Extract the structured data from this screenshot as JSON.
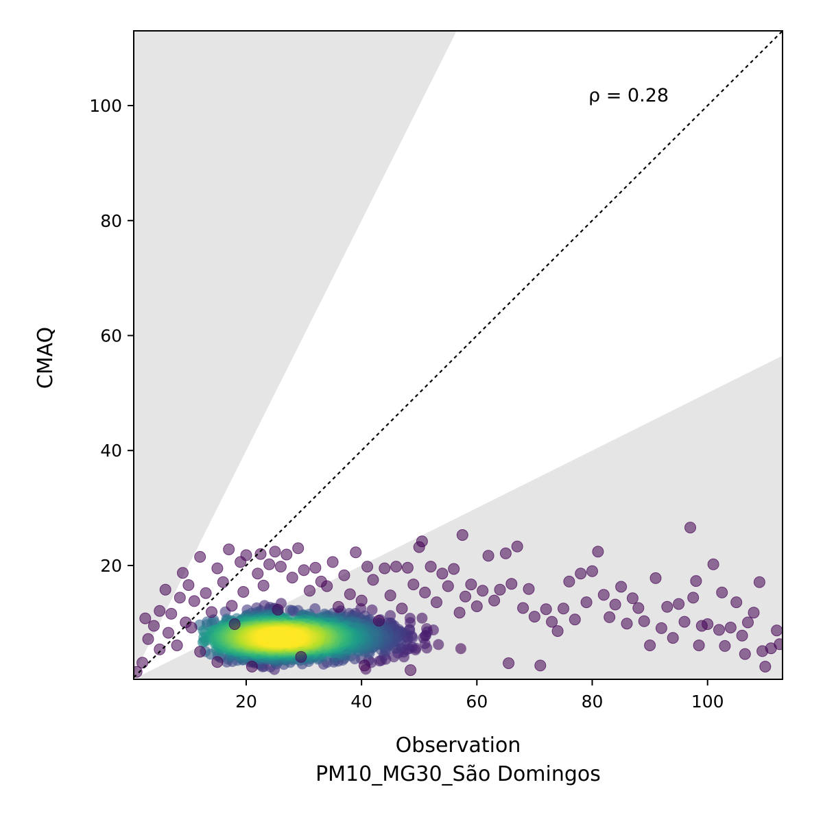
{
  "chart_data": {
    "type": "scatter",
    "title": "",
    "xlabel": "Observation",
    "xlabel2": "PM10_MG30_São Domingos",
    "ylabel": "CMAQ",
    "annotation": "ρ = 0.28",
    "xlim": [
      0.5,
      113
    ],
    "ylim": [
      0.2,
      113
    ],
    "xticks": [
      20,
      40,
      60,
      80,
      100
    ],
    "yticks": [
      20,
      40,
      60,
      80,
      100
    ],
    "reference_line": {
      "type": "identity",
      "style": "dotted",
      "color": "#000000"
    },
    "shaded_region": {
      "description": "outside factor-of-2 band",
      "upper_slope": 2,
      "lower_slope": 0.5,
      "color": "#e5e5e5"
    },
    "colormap": "viridis (point density)",
    "point_color_low": "#440154",
    "point_color_high": "#fde725",
    "points": [
      [
        1,
        1.5
      ],
      [
        2,
        3.1
      ],
      [
        2.5,
        10.8
      ],
      [
        3,
        7.2
      ],
      [
        4,
        9.5
      ],
      [
        5,
        12.1
      ],
      [
        5,
        5.4
      ],
      [
        6,
        15.8
      ],
      [
        6.5,
        8.3
      ],
      [
        7,
        11.6
      ],
      [
        8,
        6.1
      ],
      [
        8.5,
        14.4
      ],
      [
        9,
        18.7
      ],
      [
        9.5,
        10.1
      ],
      [
        10,
        16.6
      ],
      [
        10.5,
        9.2
      ],
      [
        11,
        13.8
      ],
      [
        12,
        21.5
      ],
      [
        12,
        5.0
      ],
      [
        13,
        15.2
      ],
      [
        14,
        11.9
      ],
      [
        15,
        19.5
      ],
      [
        15,
        3.2
      ],
      [
        16,
        17.1
      ],
      [
        17,
        22.8
      ],
      [
        17.5,
        13.0
      ],
      [
        18,
        9.8
      ],
      [
        19,
        20.6
      ],
      [
        19.5,
        15.4
      ],
      [
        20,
        21.8
      ],
      [
        21,
        2.4
      ],
      [
        22,
        18.6
      ],
      [
        22.5,
        22.0
      ],
      [
        23,
        16.5
      ],
      [
        24,
        20.2
      ],
      [
        25,
        22.4
      ],
      [
        25.5,
        12.3
      ],
      [
        26,
        19.8
      ],
      [
        27,
        21.9
      ],
      [
        28,
        17.9
      ],
      [
        29,
        23.0
      ],
      [
        29.5,
        4.1
      ],
      [
        30,
        19.2
      ],
      [
        31,
        15.6
      ],
      [
        32,
        19.6
      ],
      [
        33,
        17.2
      ],
      [
        34,
        16.4
      ],
      [
        35,
        20.6
      ],
      [
        36,
        12.8
      ],
      [
        37,
        18.3
      ],
      [
        38,
        15.0
      ],
      [
        39,
        22.3
      ],
      [
        40,
        13.9
      ],
      [
        40.5,
        2.6
      ],
      [
        41,
        19.8
      ],
      [
        42,
        17.5
      ],
      [
        43,
        10.4
      ],
      [
        44,
        19.5
      ],
      [
        45,
        14.8
      ],
      [
        46,
        19.8
      ],
      [
        47,
        12.5
      ],
      [
        48,
        19.6
      ],
      [
        48.5,
        1.8
      ],
      [
        49,
        16.7
      ],
      [
        50,
        23.2
      ],
      [
        50.5,
        24.2
      ],
      [
        51,
        15.3
      ],
      [
        52,
        19.8
      ],
      [
        53,
        13.6
      ],
      [
        54,
        18.6
      ],
      [
        55,
        16.4
      ],
      [
        56,
        19.4
      ],
      [
        57,
        11.8
      ],
      [
        57.5,
        25.3
      ],
      [
        58,
        14.6
      ],
      [
        59,
        16.7
      ],
      [
        60,
        12.9
      ],
      [
        61,
        15.6
      ],
      [
        62,
        21.7
      ],
      [
        63,
        13.9
      ],
      [
        64,
        15.8
      ],
      [
        65,
        22.1
      ],
      [
        65.5,
        3.0
      ],
      [
        66,
        16.8
      ],
      [
        67,
        23.3
      ],
      [
        68,
        12.6
      ],
      [
        69,
        15.9
      ],
      [
        70,
        11.1
      ],
      [
        71,
        2.6
      ],
      [
        72,
        12.4
      ],
      [
        73,
        10.2
      ],
      [
        74,
        8.6
      ],
      [
        75,
        12.5
      ],
      [
        76,
        17.2
      ],
      [
        77,
        10.6
      ],
      [
        78,
        18.6
      ],
      [
        79,
        13.6
      ],
      [
        80,
        19.0
      ],
      [
        81,
        22.4
      ],
      [
        82,
        14.9
      ],
      [
        83,
        11.0
      ],
      [
        84,
        13.2
      ],
      [
        85,
        16.3
      ],
      [
        86,
        9.9
      ],
      [
        87,
        14.3
      ],
      [
        88,
        12.6
      ],
      [
        89,
        10.3
      ],
      [
        90,
        6.1
      ],
      [
        91,
        17.8
      ],
      [
        92,
        9.1
      ],
      [
        93,
        12.8
      ],
      [
        94,
        7.4
      ],
      [
        95,
        13.3
      ],
      [
        96,
        10.2
      ],
      [
        97,
        26.6
      ],
      [
        97.5,
        14.4
      ],
      [
        98,
        17.3
      ],
      [
        98.5,
        6.1
      ],
      [
        99,
        9.5
      ],
      [
        100,
        9.8
      ],
      [
        101,
        20.2
      ],
      [
        102,
        8.8
      ],
      [
        102.5,
        15.3
      ],
      [
        103,
        6.0
      ],
      [
        104,
        9.2
      ],
      [
        105,
        13.6
      ],
      [
        106,
        7.8
      ],
      [
        106.5,
        4.6
      ],
      [
        107,
        10.1
      ],
      [
        108,
        11.8
      ],
      [
        109,
        17.1
      ],
      [
        109.5,
        5.1
      ],
      [
        110,
        2.4
      ],
      [
        111,
        5.6
      ],
      [
        112,
        8.7
      ],
      [
        112.5,
        6.3
      ]
    ],
    "density_center": {
      "x": 26,
      "y": 7.5
    }
  }
}
